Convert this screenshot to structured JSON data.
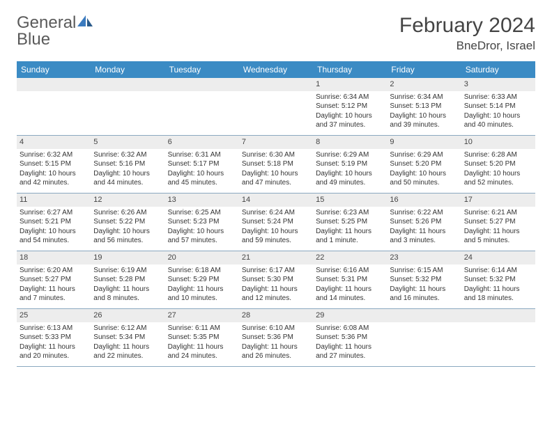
{
  "brand": {
    "part1": "General",
    "part2": "Blue"
  },
  "title": "February 2024",
  "location": "BneDror, Israel",
  "colors": {
    "header_bg": "#3b8bc4",
    "header_text": "#ffffff",
    "daynum_bg": "#ededed",
    "border": "#8aa8c0",
    "brand_gray": "#5a5a5a",
    "brand_blue": "#3b7bbf"
  },
  "dayNames": [
    "Sunday",
    "Monday",
    "Tuesday",
    "Wednesday",
    "Thursday",
    "Friday",
    "Saturday"
  ],
  "weeks": [
    [
      null,
      null,
      null,
      null,
      {
        "n": "1",
        "sr": "Sunrise: 6:34 AM",
        "ss": "Sunset: 5:12 PM",
        "d1": "Daylight: 10 hours",
        "d2": "and 37 minutes."
      },
      {
        "n": "2",
        "sr": "Sunrise: 6:34 AM",
        "ss": "Sunset: 5:13 PM",
        "d1": "Daylight: 10 hours",
        "d2": "and 39 minutes."
      },
      {
        "n": "3",
        "sr": "Sunrise: 6:33 AM",
        "ss": "Sunset: 5:14 PM",
        "d1": "Daylight: 10 hours",
        "d2": "and 40 minutes."
      }
    ],
    [
      {
        "n": "4",
        "sr": "Sunrise: 6:32 AM",
        "ss": "Sunset: 5:15 PM",
        "d1": "Daylight: 10 hours",
        "d2": "and 42 minutes."
      },
      {
        "n": "5",
        "sr": "Sunrise: 6:32 AM",
        "ss": "Sunset: 5:16 PM",
        "d1": "Daylight: 10 hours",
        "d2": "and 44 minutes."
      },
      {
        "n": "6",
        "sr": "Sunrise: 6:31 AM",
        "ss": "Sunset: 5:17 PM",
        "d1": "Daylight: 10 hours",
        "d2": "and 45 minutes."
      },
      {
        "n": "7",
        "sr": "Sunrise: 6:30 AM",
        "ss": "Sunset: 5:18 PM",
        "d1": "Daylight: 10 hours",
        "d2": "and 47 minutes."
      },
      {
        "n": "8",
        "sr": "Sunrise: 6:29 AM",
        "ss": "Sunset: 5:19 PM",
        "d1": "Daylight: 10 hours",
        "d2": "and 49 minutes."
      },
      {
        "n": "9",
        "sr": "Sunrise: 6:29 AM",
        "ss": "Sunset: 5:20 PM",
        "d1": "Daylight: 10 hours",
        "d2": "and 50 minutes."
      },
      {
        "n": "10",
        "sr": "Sunrise: 6:28 AM",
        "ss": "Sunset: 5:20 PM",
        "d1": "Daylight: 10 hours",
        "d2": "and 52 minutes."
      }
    ],
    [
      {
        "n": "11",
        "sr": "Sunrise: 6:27 AM",
        "ss": "Sunset: 5:21 PM",
        "d1": "Daylight: 10 hours",
        "d2": "and 54 minutes."
      },
      {
        "n": "12",
        "sr": "Sunrise: 6:26 AM",
        "ss": "Sunset: 5:22 PM",
        "d1": "Daylight: 10 hours",
        "d2": "and 56 minutes."
      },
      {
        "n": "13",
        "sr": "Sunrise: 6:25 AM",
        "ss": "Sunset: 5:23 PM",
        "d1": "Daylight: 10 hours",
        "d2": "and 57 minutes."
      },
      {
        "n": "14",
        "sr": "Sunrise: 6:24 AM",
        "ss": "Sunset: 5:24 PM",
        "d1": "Daylight: 10 hours",
        "d2": "and 59 minutes."
      },
      {
        "n": "15",
        "sr": "Sunrise: 6:23 AM",
        "ss": "Sunset: 5:25 PM",
        "d1": "Daylight: 11 hours",
        "d2": "and 1 minute."
      },
      {
        "n": "16",
        "sr": "Sunrise: 6:22 AM",
        "ss": "Sunset: 5:26 PM",
        "d1": "Daylight: 11 hours",
        "d2": "and 3 minutes."
      },
      {
        "n": "17",
        "sr": "Sunrise: 6:21 AM",
        "ss": "Sunset: 5:27 PM",
        "d1": "Daylight: 11 hours",
        "d2": "and 5 minutes."
      }
    ],
    [
      {
        "n": "18",
        "sr": "Sunrise: 6:20 AM",
        "ss": "Sunset: 5:27 PM",
        "d1": "Daylight: 11 hours",
        "d2": "and 7 minutes."
      },
      {
        "n": "19",
        "sr": "Sunrise: 6:19 AM",
        "ss": "Sunset: 5:28 PM",
        "d1": "Daylight: 11 hours",
        "d2": "and 8 minutes."
      },
      {
        "n": "20",
        "sr": "Sunrise: 6:18 AM",
        "ss": "Sunset: 5:29 PM",
        "d1": "Daylight: 11 hours",
        "d2": "and 10 minutes."
      },
      {
        "n": "21",
        "sr": "Sunrise: 6:17 AM",
        "ss": "Sunset: 5:30 PM",
        "d1": "Daylight: 11 hours",
        "d2": "and 12 minutes."
      },
      {
        "n": "22",
        "sr": "Sunrise: 6:16 AM",
        "ss": "Sunset: 5:31 PM",
        "d1": "Daylight: 11 hours",
        "d2": "and 14 minutes."
      },
      {
        "n": "23",
        "sr": "Sunrise: 6:15 AM",
        "ss": "Sunset: 5:32 PM",
        "d1": "Daylight: 11 hours",
        "d2": "and 16 minutes."
      },
      {
        "n": "24",
        "sr": "Sunrise: 6:14 AM",
        "ss": "Sunset: 5:32 PM",
        "d1": "Daylight: 11 hours",
        "d2": "and 18 minutes."
      }
    ],
    [
      {
        "n": "25",
        "sr": "Sunrise: 6:13 AM",
        "ss": "Sunset: 5:33 PM",
        "d1": "Daylight: 11 hours",
        "d2": "and 20 minutes."
      },
      {
        "n": "26",
        "sr": "Sunrise: 6:12 AM",
        "ss": "Sunset: 5:34 PM",
        "d1": "Daylight: 11 hours",
        "d2": "and 22 minutes."
      },
      {
        "n": "27",
        "sr": "Sunrise: 6:11 AM",
        "ss": "Sunset: 5:35 PM",
        "d1": "Daylight: 11 hours",
        "d2": "and 24 minutes."
      },
      {
        "n": "28",
        "sr": "Sunrise: 6:10 AM",
        "ss": "Sunset: 5:36 PM",
        "d1": "Daylight: 11 hours",
        "d2": "and 26 minutes."
      },
      {
        "n": "29",
        "sr": "Sunrise: 6:08 AM",
        "ss": "Sunset: 5:36 PM",
        "d1": "Daylight: 11 hours",
        "d2": "and 27 minutes."
      },
      null,
      null
    ]
  ]
}
